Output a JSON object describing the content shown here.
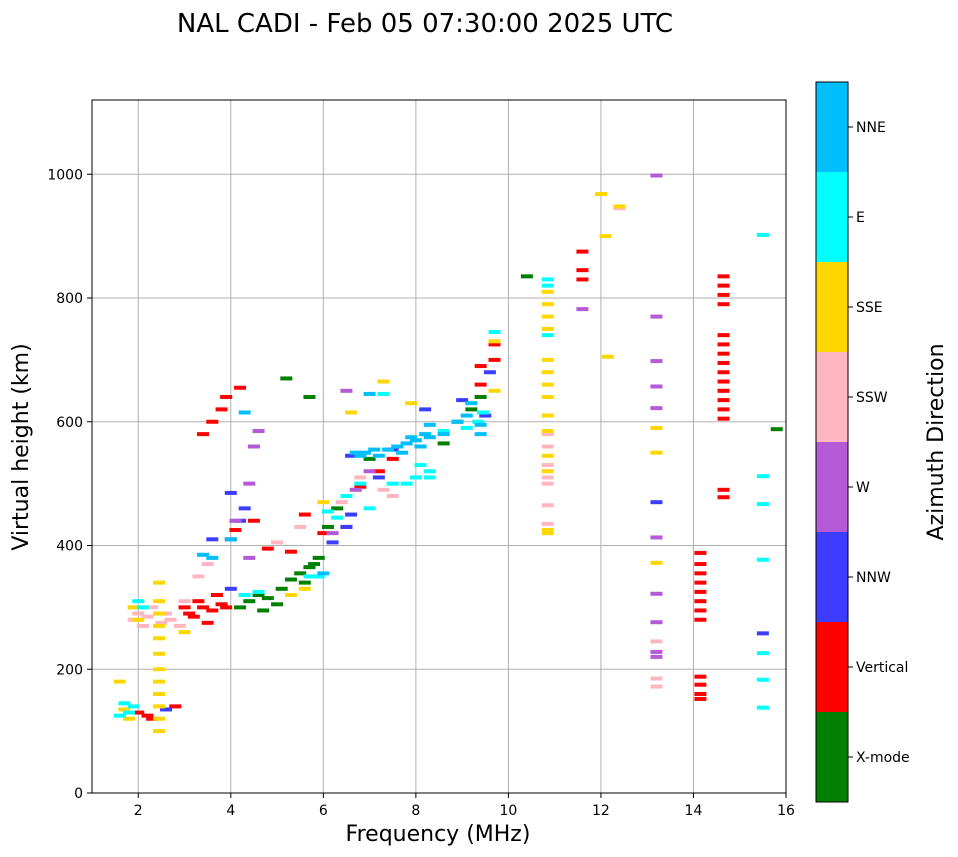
{
  "chart_data": {
    "type": "scatter",
    "title": "NAL CADI - Feb 05 07:30:00 2025 UTC",
    "xlabel": "Frequency (MHz)",
    "ylabel": "Virtual height (km)",
    "xlim": [
      1,
      16
    ],
    "ylim": [
      0,
      1120
    ],
    "xticks": [
      "2",
      "4",
      "6",
      "8",
      "10",
      "12",
      "14",
      "16"
    ],
    "yticks": [
      "0",
      "200",
      "400",
      "600",
      "800",
      "1000"
    ],
    "grid": true,
    "colorbar": {
      "label": "Azimuth Direction",
      "categories": [
        {
          "name": "X-mode",
          "color": "#008000"
        },
        {
          "name": "Vertical",
          "color": "#ff0000"
        },
        {
          "name": "NNW",
          "color": "#3d3dff"
        },
        {
          "name": "W",
          "color": "#b45ad6"
        },
        {
          "name": "SSW",
          "color": "#ffb6c1"
        },
        {
          "name": "SSE",
          "color": "#ffd700"
        },
        {
          "name": "E",
          "color": "#00ffff"
        },
        {
          "name": "NNE",
          "color": "#00bfff"
        }
      ]
    },
    "series": [
      {
        "name": "Vertical",
        "points": [
          [
            2.0,
            130
          ],
          [
            2.2,
            125
          ],
          [
            2.3,
            120
          ],
          [
            2.8,
            140
          ],
          [
            3.0,
            300
          ],
          [
            3.1,
            290
          ],
          [
            3.2,
            285
          ],
          [
            3.3,
            310
          ],
          [
            3.4,
            300
          ],
          [
            3.5,
            275
          ],
          [
            3.6,
            295
          ],
          [
            3.7,
            320
          ],
          [
            3.8,
            305
          ],
          [
            3.9,
            300
          ],
          [
            4.0,
            410
          ],
          [
            4.1,
            425
          ],
          [
            3.8,
            620
          ],
          [
            3.9,
            640
          ],
          [
            4.2,
            655
          ],
          [
            3.6,
            600
          ],
          [
            3.4,
            580
          ],
          [
            4.5,
            440
          ],
          [
            4.8,
            395
          ],
          [
            5.3,
            390
          ],
          [
            5.6,
            450
          ],
          [
            6.0,
            420
          ],
          [
            6.5,
            430
          ],
          [
            6.8,
            495
          ],
          [
            7.2,
            520
          ],
          [
            7.5,
            540
          ],
          [
            9.4,
            690
          ],
          [
            9.4,
            660
          ],
          [
            9.7,
            700
          ],
          [
            9.7,
            725
          ],
          [
            11.6,
            875
          ],
          [
            11.6,
            845
          ],
          [
            11.6,
            830
          ],
          [
            14.15,
            388
          ],
          [
            14.15,
            370
          ],
          [
            14.15,
            355
          ],
          [
            14.15,
            340
          ],
          [
            14.15,
            325
          ],
          [
            14.15,
            310
          ],
          [
            14.15,
            295
          ],
          [
            14.15,
            280
          ],
          [
            14.15,
            188
          ],
          [
            14.15,
            175
          ],
          [
            14.15,
            160
          ],
          [
            14.15,
            152
          ],
          [
            14.65,
            835
          ],
          [
            14.65,
            820
          ],
          [
            14.65,
            805
          ],
          [
            14.65,
            790
          ],
          [
            14.65,
            740
          ],
          [
            14.65,
            725
          ],
          [
            14.65,
            710
          ],
          [
            14.65,
            695
          ],
          [
            14.65,
            680
          ],
          [
            14.65,
            665
          ],
          [
            14.65,
            650
          ],
          [
            14.65,
            635
          ],
          [
            14.65,
            620
          ],
          [
            14.65,
            605
          ],
          [
            14.65,
            490
          ],
          [
            14.65,
            478
          ]
        ]
      },
      {
        "name": "X-mode",
        "points": [
          [
            4.2,
            300
          ],
          [
            4.4,
            310
          ],
          [
            4.6,
            320
          ],
          [
            4.7,
            295
          ],
          [
            4.8,
            315
          ],
          [
            5.0,
            305
          ],
          [
            5.1,
            330
          ],
          [
            5.3,
            345
          ],
          [
            5.5,
            355
          ],
          [
            5.6,
            340
          ],
          [
            5.7,
            365
          ],
          [
            5.8,
            370
          ],
          [
            5.9,
            380
          ],
          [
            6.1,
            430
          ],
          [
            6.3,
            460
          ],
          [
            7.0,
            540
          ],
          [
            7.6,
            560
          ],
          [
            8.6,
            565
          ],
          [
            8.9,
            600
          ],
          [
            9.2,
            620
          ],
          [
            9.4,
            640
          ],
          [
            10.4,
            835
          ],
          [
            15.8,
            588
          ],
          [
            5.2,
            670
          ],
          [
            5.7,
            640
          ]
        ]
      },
      {
        "name": "NNW",
        "points": [
          [
            2.6,
            135
          ],
          [
            3.6,
            410
          ],
          [
            4.0,
            330
          ],
          [
            4.2,
            440
          ],
          [
            4.3,
            460
          ],
          [
            6.6,
            545
          ],
          [
            6.2,
            405
          ],
          [
            6.5,
            430
          ],
          [
            6.6,
            450
          ],
          [
            7.2,
            510
          ],
          [
            7.5,
            555
          ],
          [
            8.2,
            620
          ],
          [
            9.0,
            635
          ],
          [
            9.5,
            610
          ],
          [
            13.2,
            470
          ],
          [
            15.5,
            258
          ],
          [
            4.0,
            485
          ],
          [
            9.6,
            680
          ]
        ]
      },
      {
        "name": "W",
        "points": [
          [
            4.1,
            440
          ],
          [
            4.4,
            380
          ],
          [
            4.4,
            500
          ],
          [
            4.5,
            560
          ],
          [
            4.6,
            585
          ],
          [
            6.2,
            420
          ],
          [
            6.7,
            490
          ],
          [
            7.0,
            520
          ],
          [
            13.2,
            998
          ],
          [
            13.2,
            770
          ],
          [
            13.2,
            698
          ],
          [
            13.2,
            657
          ],
          [
            13.2,
            622
          ],
          [
            13.2,
            413
          ],
          [
            13.2,
            322
          ],
          [
            13.2,
            276
          ],
          [
            13.2,
            228
          ],
          [
            13.2,
            220
          ],
          [
            11.6,
            782
          ],
          [
            6.5,
            650
          ]
        ]
      },
      {
        "name": "SSW",
        "points": [
          [
            1.9,
            280
          ],
          [
            2.0,
            290
          ],
          [
            2.1,
            270
          ],
          [
            2.2,
            285
          ],
          [
            2.3,
            300
          ],
          [
            2.5,
            275
          ],
          [
            2.6,
            290
          ],
          [
            2.7,
            280
          ],
          [
            2.9,
            270
          ],
          [
            3.0,
            310
          ],
          [
            3.3,
            350
          ],
          [
            3.5,
            370
          ],
          [
            6.4,
            470
          ],
          [
            6.8,
            510
          ],
          [
            7.3,
            490
          ],
          [
            7.5,
            480
          ],
          [
            10.85,
            580
          ],
          [
            10.85,
            560
          ],
          [
            10.85,
            530
          ],
          [
            10.85,
            510
          ],
          [
            10.85,
            500
          ],
          [
            10.85,
            465
          ],
          [
            10.85,
            435
          ],
          [
            12.4,
            945
          ],
          [
            13.2,
            245
          ],
          [
            13.2,
            185
          ],
          [
            13.2,
            172
          ],
          [
            5.0,
            405
          ],
          [
            5.5,
            430
          ]
        ]
      },
      {
        "name": "SSE",
        "points": [
          [
            1.6,
            180
          ],
          [
            1.7,
            135
          ],
          [
            1.8,
            120
          ],
          [
            1.9,
            300
          ],
          [
            2.0,
            280
          ],
          [
            2.45,
            340
          ],
          [
            2.45,
            310
          ],
          [
            2.45,
            290
          ],
          [
            2.45,
            270
          ],
          [
            2.45,
            250
          ],
          [
            2.45,
            225
          ],
          [
            2.45,
            200
          ],
          [
            2.45,
            180
          ],
          [
            2.45,
            160
          ],
          [
            2.45,
            140
          ],
          [
            2.45,
            120
          ],
          [
            2.45,
            100
          ],
          [
            3.0,
            260
          ],
          [
            5.3,
            320
          ],
          [
            5.6,
            330
          ],
          [
            6.0,
            470
          ],
          [
            6.6,
            615
          ],
          [
            7.3,
            665
          ],
          [
            7.9,
            630
          ],
          [
            9.7,
            730
          ],
          [
            9.7,
            650
          ],
          [
            10.85,
            810
          ],
          [
            10.85,
            790
          ],
          [
            10.85,
            770
          ],
          [
            10.85,
            750
          ],
          [
            10.85,
            700
          ],
          [
            10.85,
            680
          ],
          [
            10.85,
            660
          ],
          [
            10.85,
            640
          ],
          [
            10.85,
            610
          ],
          [
            10.85,
            585
          ],
          [
            10.85,
            545
          ],
          [
            10.85,
            520
          ],
          [
            10.85,
            425
          ],
          [
            10.85,
            420
          ],
          [
            12.0,
            968
          ],
          [
            12.1,
            900
          ],
          [
            12.15,
            705
          ],
          [
            12.4,
            948
          ],
          [
            13.2,
            590
          ],
          [
            13.2,
            550
          ],
          [
            13.2,
            372
          ]
        ]
      },
      {
        "name": "E",
        "points": [
          [
            1.6,
            125
          ],
          [
            1.7,
            145
          ],
          [
            1.8,
            130
          ],
          [
            1.9,
            140
          ],
          [
            2.0,
            310
          ],
          [
            2.1,
            300
          ],
          [
            4.3,
            320
          ],
          [
            4.6,
            325
          ],
          [
            5.7,
            350
          ],
          [
            5.9,
            350
          ],
          [
            6.1,
            455
          ],
          [
            6.3,
            445
          ],
          [
            6.5,
            480
          ],
          [
            6.8,
            500
          ],
          [
            7.0,
            460
          ],
          [
            7.3,
            645
          ],
          [
            7.5,
            500
          ],
          [
            7.8,
            500
          ],
          [
            8.0,
            510
          ],
          [
            8.1,
            530
          ],
          [
            8.3,
            520
          ],
          [
            8.3,
            510
          ],
          [
            8.6,
            585
          ],
          [
            9.1,
            590
          ],
          [
            9.35,
            600
          ],
          [
            9.45,
            615
          ],
          [
            9.7,
            745
          ],
          [
            10.85,
            830
          ],
          [
            10.85,
            820
          ],
          [
            10.85,
            740
          ],
          [
            15.5,
            902
          ],
          [
            15.5,
            512
          ],
          [
            15.5,
            467
          ],
          [
            15.5,
            377
          ],
          [
            15.5,
            226
          ],
          [
            15.5,
            183
          ],
          [
            15.5,
            138
          ]
        ]
      },
      {
        "name": "NNE",
        "points": [
          [
            3.6,
            380
          ],
          [
            4.0,
            410
          ],
          [
            4.3,
            615
          ],
          [
            6.7,
            550
          ],
          [
            6.8,
            545
          ],
          [
            6.9,
            550
          ],
          [
            7.1,
            555
          ],
          [
            7.2,
            545
          ],
          [
            7.4,
            555
          ],
          [
            7.6,
            560
          ],
          [
            7.7,
            550
          ],
          [
            7.8,
            565
          ],
          [
            7.9,
            575
          ],
          [
            8.0,
            570
          ],
          [
            8.1,
            560
          ],
          [
            8.2,
            580
          ],
          [
            8.3,
            575
          ],
          [
            8.3,
            595
          ],
          [
            8.6,
            580
          ],
          [
            8.9,
            600
          ],
          [
            9.1,
            610
          ],
          [
            9.2,
            630
          ],
          [
            9.4,
            595
          ],
          [
            9.4,
            580
          ],
          [
            6.0,
            355
          ],
          [
            3.4,
            385
          ],
          [
            7.0,
            645
          ]
        ]
      }
    ]
  }
}
